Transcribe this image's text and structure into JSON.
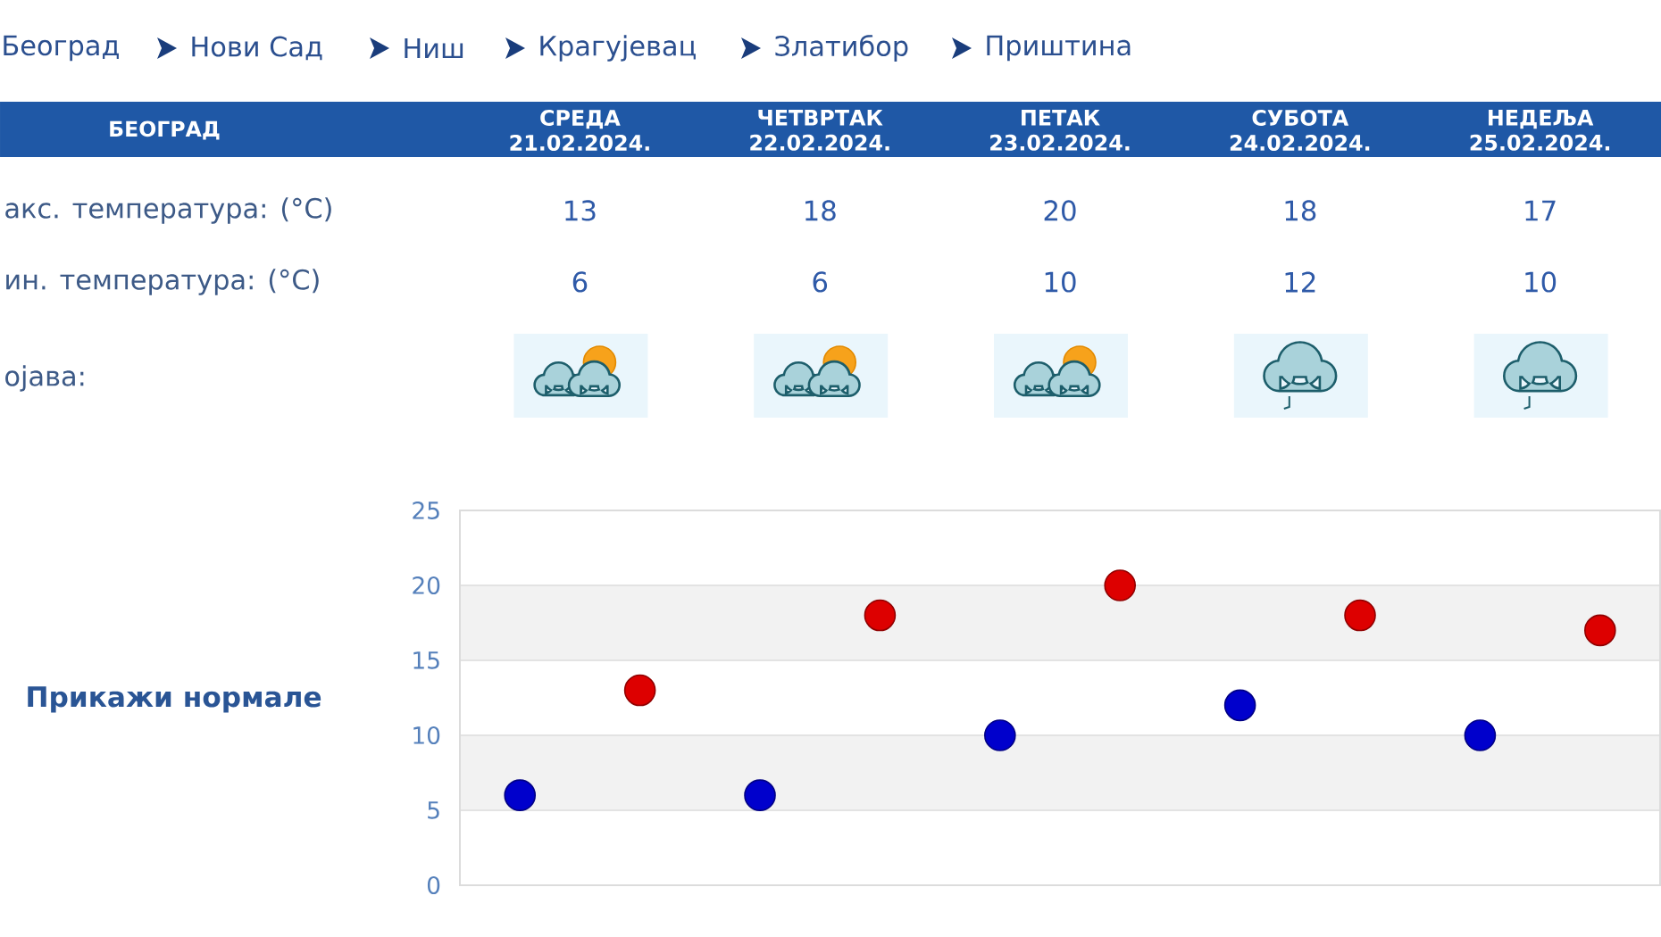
{
  "chart_data": {
    "type": "scatter",
    "title": "БЕОГРАД",
    "categories": [
      null,
      null,
      null,
      null,
      null
    ],
    "series": [
      {
        "color": "#dd0000",
        "values": [
          13,
          18,
          20,
          18,
          17
        ]
      },
      {
        "color": "#0000cc",
        "values": [
          6,
          6,
          10,
          12,
          10
        ]
      }
    ],
    "ylim": [
      0,
      25
    ],
    "yticks": [
      0,
      5,
      10,
      15,
      20,
      25
    ],
    "grid": true,
    "marker": "circle",
    "data_labels": true,
    "bands": [
      {
        "axis": "y",
        "from": 5,
        "to": 10,
        "color": "#f2f2f2"
      },
      {
        "axis": "y",
        "from": 15,
        "to": 20,
        "color": "#f2f2f2"
      }
    ],
    "annotations": [
      "Београд",
      "Нови Сад",
      "Ниш",
      "Крагујевац",
      "Златибор",
      "Приштина",
      "СРЕДА 21.02.2024.",
      "ЧЕТВРТАК 22.02.2024.",
      "ПЕТАК 23.02.2024.",
      "СУБОТА 24.02.2024.",
      "НЕДЕЉА 25.02.2024.",
      "акс. температура: (°C)",
      "ин. температура: (°C)",
      "ојава:",
      "Прикажи нормале"
    ]
  }
}
